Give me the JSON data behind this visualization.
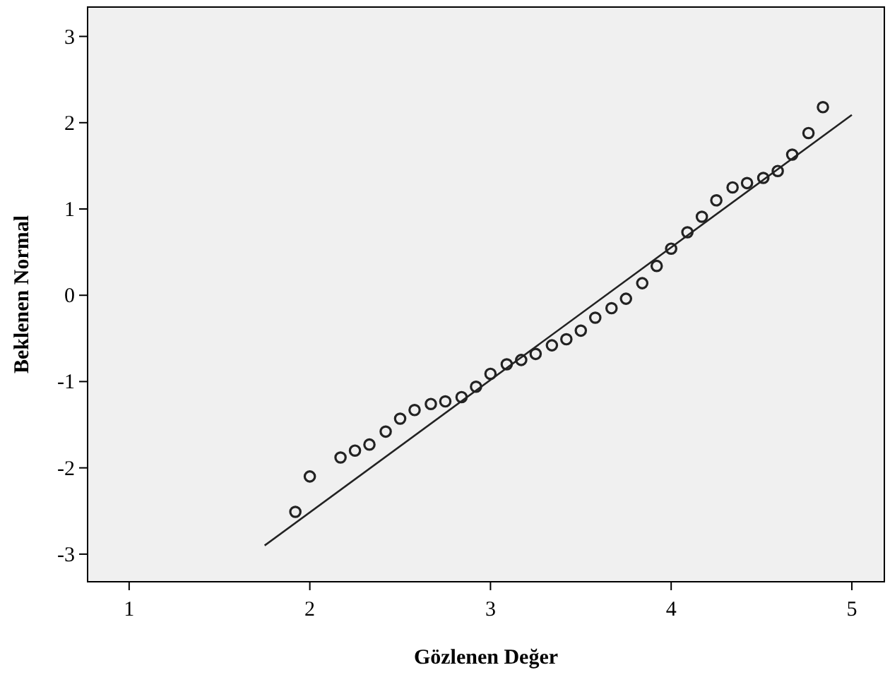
{
  "chart_data": {
    "type": "scatter",
    "xlabel": "Gözlenen Değer",
    "ylabel": "Beklenen Normal",
    "xlim": [
      0.77,
      5.18
    ],
    "ylim": [
      -3.32,
      3.34
    ],
    "xticks": [
      1,
      2,
      3,
      4,
      5
    ],
    "yticks": [
      -3,
      -2,
      -1,
      0,
      1,
      2,
      3
    ],
    "grid": false,
    "series": [
      {
        "color": "#222222",
        "marker": "circle",
        "x": [
          1.92,
          2.0,
          2.17,
          2.25,
          2.33,
          2.42,
          2.5,
          2.58,
          2.67,
          2.75,
          2.84,
          2.92,
          3.0,
          3.09,
          3.17,
          3.25,
          3.34,
          3.42,
          3.5,
          3.58,
          3.67,
          3.75,
          3.84,
          3.92,
          4.0,
          4.09,
          4.17,
          4.25,
          4.34,
          4.42,
          4.51,
          4.59,
          4.67,
          4.76,
          4.84
        ],
        "values": [
          -2.51,
          -2.1,
          -1.88,
          -1.8,
          -1.73,
          -1.58,
          -1.43,
          -1.33,
          -1.26,
          -1.23,
          -1.18,
          -1.06,
          -0.91,
          -0.8,
          -0.75,
          -0.68,
          -0.58,
          -0.51,
          -0.41,
          -0.26,
          -0.15,
          -0.04,
          0.14,
          0.34,
          0.54,
          0.73,
          0.91,
          1.1,
          1.25,
          1.3,
          1.36,
          1.44,
          1.63,
          1.88,
          2.18
        ]
      },
      {
        "type": "line",
        "color": "#222222",
        "line_style": "solid",
        "x": [
          1.75,
          5.0
        ],
        "values": [
          -2.9,
          2.09
        ]
      }
    ]
  }
}
